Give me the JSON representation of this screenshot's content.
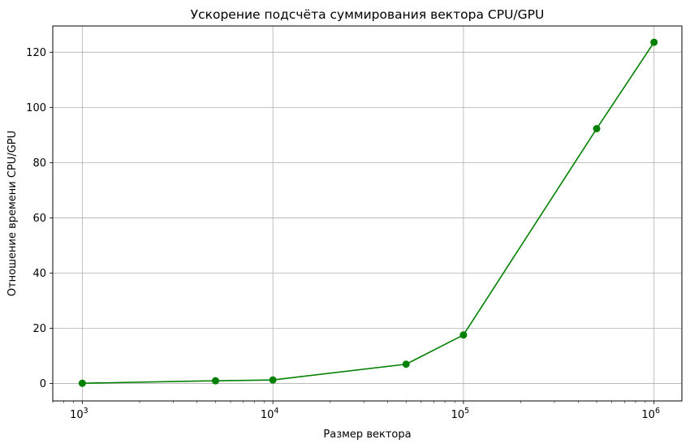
{
  "chart_data": {
    "type": "line",
    "title": "Ускорение подсчёта суммирования вектора CPU/GPU",
    "xlabel": "Размер вектора",
    "ylabel": "Отношение времени CPU/GPU",
    "x_scale": "log",
    "xlim": [
      700,
      1400000
    ],
    "ylim": [
      -6.3,
      129.5
    ],
    "x_ticks": [
      {
        "base": "10",
        "exp": "3",
        "value": 1000
      },
      {
        "base": "10",
        "exp": "4",
        "value": 10000
      },
      {
        "base": "10",
        "exp": "5",
        "value": 100000
      },
      {
        "base": "10",
        "exp": "6",
        "value": 1000000
      }
    ],
    "y_ticks": [
      "0",
      "20",
      "40",
      "60",
      "80",
      "100",
      "120"
    ],
    "grid": true,
    "series": [
      {
        "color": "#008000",
        "marker": "circle",
        "x": [
          1000,
          5000,
          10000,
          50000,
          100000,
          500000,
          1000000
        ],
        "y": [
          0.1,
          1.0,
          1.3,
          7.0,
          17.6,
          92.3,
          123.6
        ]
      }
    ]
  }
}
